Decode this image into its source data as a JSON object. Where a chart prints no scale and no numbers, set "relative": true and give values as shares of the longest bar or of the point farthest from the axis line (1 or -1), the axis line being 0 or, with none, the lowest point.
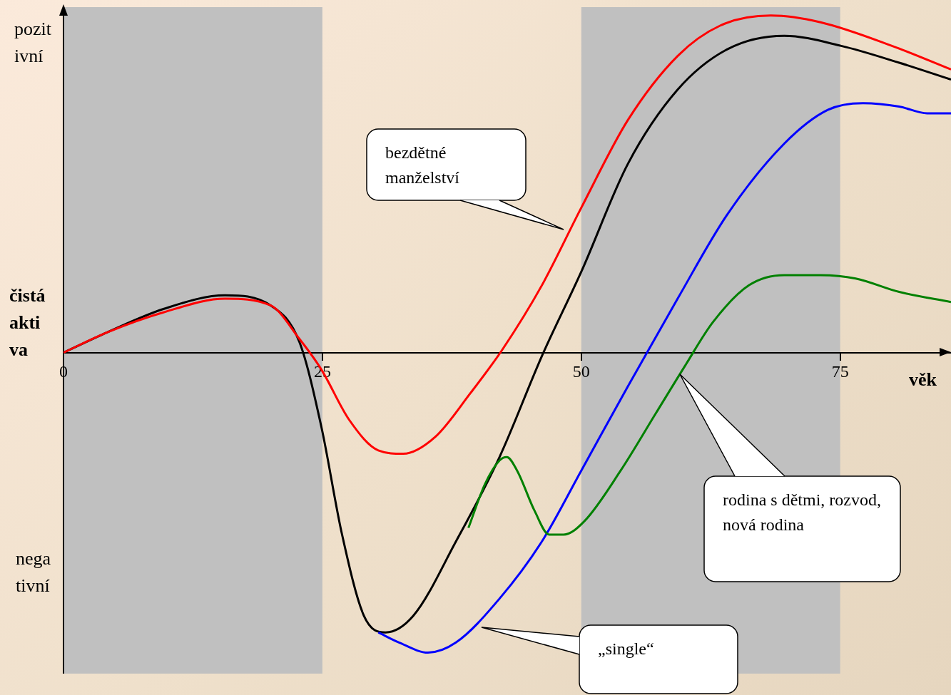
{
  "chart_data": {
    "type": "line",
    "relative": true,
    "xlabel": "věk",
    "ylabel": "čistá aktiva",
    "xlim": [
      0,
      85.7
    ],
    "xticks": [
      0,
      25,
      50,
      75
    ],
    "grid": false,
    "legend": false,
    "marker": "none",
    "bands": [
      {
        "axis": "x",
        "from": 0,
        "to": 25,
        "color": "#c0c0c0"
      },
      {
        "axis": "x",
        "from": 50,
        "to": 75,
        "color": "#c0c0c0"
      }
    ],
    "series": [
      {
        "color": "#000000",
        "x": [
          0,
          4.2,
          9.7,
          15.6,
          20.0,
          22.8,
          24.9,
          26.9,
          29.0,
          31.1,
          33.8,
          37.9,
          42.1,
          46.2,
          50.0,
          54.5,
          59.3,
          64.1,
          69.6,
          75.1,
          80.7,
          85.7
        ],
        "values": [
          0,
          0.06,
          0.13,
          0.17,
          0.14,
          0.03,
          -0.22,
          -0.54,
          -0.78,
          -0.83,
          -0.78,
          -0.56,
          -0.31,
          -0.01,
          0.24,
          0.56,
          0.78,
          0.9,
          0.94,
          0.91,
          0.86,
          0.81
        ]
      },
      {
        "color": "#ff0000",
        "x": [
          0,
          4.2,
          9.7,
          15.6,
          20.0,
          22.8,
          24.9,
          27.6,
          30.4,
          32.8,
          35.9,
          39.3,
          42.4,
          46.2,
          50.0,
          54.5,
          59.3,
          63.4,
          68.3,
          73.1,
          80.0,
          85.7
        ],
        "values": [
          0,
          0.06,
          0.12,
          0.16,
          0.14,
          0.04,
          -0.05,
          -0.2,
          -0.29,
          -0.3,
          -0.25,
          -0.12,
          0.01,
          0.2,
          0.43,
          0.69,
          0.88,
          0.97,
          1.0,
          0.98,
          0.91,
          0.84
        ]
      },
      {
        "color": "#0000ff",
        "x": [
          30.4,
          32.4,
          35.2,
          37.9,
          42.1,
          46.2,
          50.0,
          54.5,
          59.3,
          64.1,
          69.6,
          73.8,
          77.2,
          80.7,
          83.4,
          85.7
        ],
        "values": [
          -0.83,
          -0.86,
          -0.89,
          -0.86,
          -0.73,
          -0.56,
          -0.35,
          -0.1,
          0.16,
          0.41,
          0.62,
          0.72,
          0.74,
          0.73,
          0.71,
          0.71
        ]
      },
      {
        "color": "#008000",
        "x": [
          39.1,
          40.7,
          42.1,
          42.8,
          43.8,
          45.5,
          46.9,
          48.3,
          50.3,
          53.8,
          57.2,
          60.0,
          62.7,
          66.2,
          69.6,
          73.1,
          76.5,
          80.7,
          85.7
        ],
        "values": [
          -0.52,
          -0.39,
          -0.32,
          -0.31,
          -0.35,
          -0.47,
          -0.54,
          -0.54,
          -0.5,
          -0.35,
          -0.18,
          -0.04,
          0.09,
          0.2,
          0.23,
          0.23,
          0.22,
          0.18,
          0.15
        ]
      }
    ],
    "annotations": [
      "pozitivní",
      "negativní",
      "bezdětné manželství",
      "rodina s dětmi, rozvod, nová rodina",
      "„single“"
    ]
  }
}
